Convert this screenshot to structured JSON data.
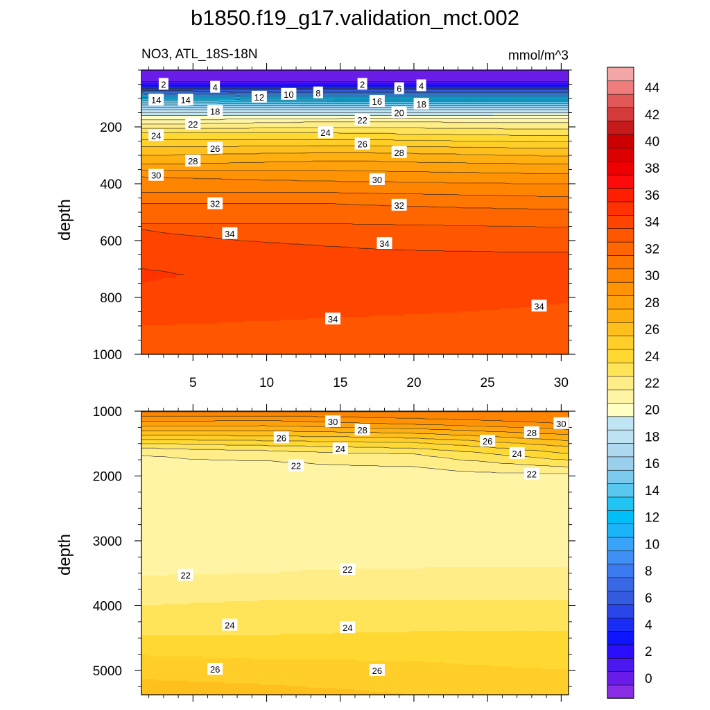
{
  "title": "b1850.f19_g17.validation_mct.002",
  "subtitle_left": "NO3, ATL_18S-18N",
  "subtitle_right": "mmol/m^3",
  "chart_data": [
    {
      "type": "contour",
      "panel": "upper",
      "variable": "NO3",
      "region": "ATL_18S-18N",
      "units": "mmol/m^3",
      "xlabel": "",
      "ylabel": "depth",
      "xlim": [
        1.5,
        30.5
      ],
      "ylim": [
        1000,
        0
      ],
      "x_ticks": [
        5,
        10,
        15,
        20,
        25,
        30
      ],
      "y_ticks": [
        200,
        400,
        600,
        800,
        1000
      ],
      "contour_labels": [
        {
          "x": 3,
          "depth": 50,
          "value": "2"
        },
        {
          "x": 6.5,
          "depth": 60,
          "value": "4"
        },
        {
          "x": 16.5,
          "depth": 50,
          "value": "2"
        },
        {
          "x": 19,
          "depth": 65,
          "value": "6"
        },
        {
          "x": 20.5,
          "depth": 55,
          "value": "4"
        },
        {
          "x": 13.5,
          "depth": 80,
          "value": "8"
        },
        {
          "x": 11.5,
          "depth": 85,
          "value": "10"
        },
        {
          "x": 9.5,
          "depth": 95,
          "value": "12"
        },
        {
          "x": 2.5,
          "depth": 105,
          "value": "14"
        },
        {
          "x": 4.5,
          "depth": 105,
          "value": "14"
        },
        {
          "x": 17.5,
          "depth": 110,
          "value": "16"
        },
        {
          "x": 6.5,
          "depth": 145,
          "value": "18"
        },
        {
          "x": 20.5,
          "depth": 120,
          "value": "18"
        },
        {
          "x": 19,
          "depth": 150,
          "value": "20"
        },
        {
          "x": 5,
          "depth": 190,
          "value": "22"
        },
        {
          "x": 16.5,
          "depth": 175,
          "value": "22"
        },
        {
          "x": 2.5,
          "depth": 230,
          "value": "24"
        },
        {
          "x": 14,
          "depth": 220,
          "value": "24"
        },
        {
          "x": 6.5,
          "depth": 275,
          "value": "26"
        },
        {
          "x": 16.5,
          "depth": 260,
          "value": "26"
        },
        {
          "x": 5,
          "depth": 320,
          "value": "28"
        },
        {
          "x": 19,
          "depth": 290,
          "value": "28"
        },
        {
          "x": 2.5,
          "depth": 370,
          "value": "30"
        },
        {
          "x": 17.5,
          "depth": 385,
          "value": "30"
        },
        {
          "x": 6.5,
          "depth": 470,
          "value": "32"
        },
        {
          "x": 19,
          "depth": 475,
          "value": "32"
        },
        {
          "x": 7.5,
          "depth": 575,
          "value": "34"
        },
        {
          "x": 18,
          "depth": 610,
          "value": "34"
        },
        {
          "x": 14.5,
          "depth": 875,
          "value": "34"
        },
        {
          "x": 28.5,
          "depth": 830,
          "value": "34"
        }
      ]
    },
    {
      "type": "contour",
      "panel": "lower",
      "variable": "NO3",
      "units": "mmol/m^3",
      "xlabel": "",
      "ylabel": "depth",
      "xlim": [
        1.5,
        30.5
      ],
      "ylim": [
        5375,
        1000
      ],
      "y_ticks": [
        1000,
        2000,
        3000,
        4000,
        5000
      ],
      "contour_labels": [
        {
          "x": 14.5,
          "depth": 1160,
          "value": "30"
        },
        {
          "x": 30,
          "depth": 1190,
          "value": "30"
        },
        {
          "x": 16.5,
          "depth": 1290,
          "value": "28"
        },
        {
          "x": 28,
          "depth": 1330,
          "value": "28"
        },
        {
          "x": 11,
          "depth": 1410,
          "value": "26"
        },
        {
          "x": 25,
          "depth": 1460,
          "value": "26"
        },
        {
          "x": 15,
          "depth": 1580,
          "value": "24"
        },
        {
          "x": 27,
          "depth": 1650,
          "value": "24"
        },
        {
          "x": 12,
          "depth": 1840,
          "value": "22"
        },
        {
          "x": 28,
          "depth": 1970,
          "value": "22"
        },
        {
          "x": 4.5,
          "depth": 3530,
          "value": "22"
        },
        {
          "x": 15.5,
          "depth": 3440,
          "value": "22"
        },
        {
          "x": 7.5,
          "depth": 4300,
          "value": "24"
        },
        {
          "x": 15.5,
          "depth": 4340,
          "value": "24"
        },
        {
          "x": 6.5,
          "depth": 4980,
          "value": "26"
        },
        {
          "x": 17.5,
          "depth": 5000,
          "value": "26"
        }
      ]
    }
  ],
  "colorbar": {
    "levels_min": -1,
    "levels_step": 1,
    "labels": [
      "0",
      "2",
      "4",
      "6",
      "8",
      "10",
      "12",
      "14",
      "16",
      "18",
      "20",
      "22",
      "24",
      "26",
      "28",
      "30",
      "32",
      "34",
      "36",
      "38",
      "40",
      "42",
      "44"
    ],
    "colors_bottom_to_top": [
      "#8a2ee6",
      "#6a1de8",
      "#4b18f0",
      "#2a0cff",
      "#0f14ff",
      "#1a2df5",
      "#2a46e8",
      "#345ae0",
      "#3868e6",
      "#3b7af0",
      "#3f8ff5",
      "#3aa2f8",
      "#1ab4f9",
      "#00bff8",
      "#22c4f4",
      "#58c8f0",
      "#7ccbee",
      "#9ad0ee",
      "#aed9f0",
      "#bde3f3",
      "#bfe4f3",
      "#ffffc4",
      "#fff4a4",
      "#ffee88",
      "#ffe45a",
      "#ffd932",
      "#ffce28",
      "#ffc01e",
      "#ffaf10",
      "#ffa10a",
      "#ff9304",
      "#ff8400",
      "#ff7600",
      "#ff6600",
      "#ff5600",
      "#ff4400",
      "#ff3200",
      "#ff1e00",
      "#ff0a0a",
      "#ef0000",
      "#dd0000",
      "#cc0000",
      "#c61a1a",
      "#d43a3a",
      "#e25858",
      "#ef7d7d",
      "#f4a6a6"
    ]
  }
}
